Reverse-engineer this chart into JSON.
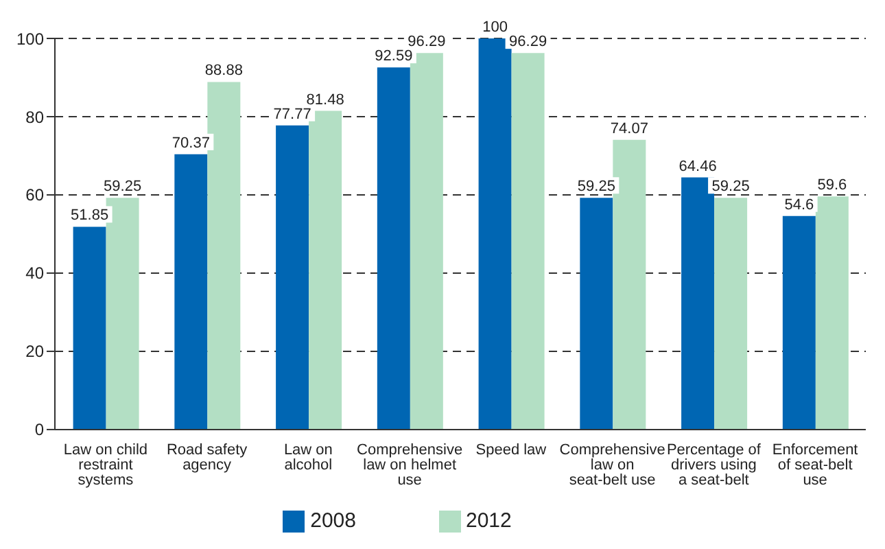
{
  "chart_data": {
    "type": "bar",
    "categories": [
      "Law on child restraint systems",
      "Road safety agency",
      "Law on alcohol",
      "Comprehensive law on helmet use",
      "Speed law",
      "Comprehensive law on seat-belt use",
      "Percentage of drivers using a seat-belt",
      "Enforcement of seat-belt use"
    ],
    "series": [
      {
        "name": "2008",
        "color": "#0066b3",
        "values": [
          51.85,
          70.37,
          77.77,
          92.59,
          100,
          59.25,
          64.46,
          54.6
        ]
      },
      {
        "name": "2012",
        "color": "#b3dfc4",
        "values": [
          59.25,
          88.88,
          81.48,
          96.29,
          96.29,
          74.07,
          59.25,
          59.6
        ]
      }
    ],
    "ylim": [
      0,
      100
    ],
    "yticks": [
      0,
      20,
      40,
      60,
      80,
      100
    ],
    "grid": "y",
    "legend": "bottom",
    "data_labels": true
  }
}
